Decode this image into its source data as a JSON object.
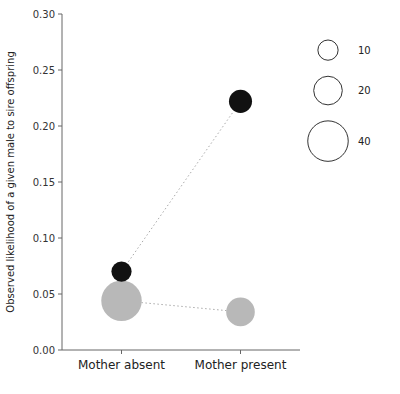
{
  "chart_data": {
    "type": "bubble",
    "y_label": "Observed likelihood of a given male to sire offspring",
    "categories": [
      "Mother absent",
      "Mother present"
    ],
    "series": [
      {
        "color": "#111111",
        "line_style": "dotted",
        "values": [
          0.07,
          0.222
        ],
        "sizes": [
          10,
          13
        ]
      },
      {
        "color": "#b8b8b8",
        "line_style": "dotted",
        "values": [
          0.044,
          0.034
        ],
        "sizes": [
          40,
          20
        ]
      }
    ],
    "size_legend": [
      10,
      20,
      40
    ],
    "ylim": [
      0.0,
      0.3
    ],
    "yticks": [
      {
        "value": 0.0,
        "label": "0.00"
      },
      {
        "value": 0.05,
        "label": "0.05"
      },
      {
        "value": 0.1,
        "label": "0.10"
      },
      {
        "value": 0.15,
        "label": "0.15"
      },
      {
        "value": 0.2,
        "label": "0.20"
      },
      {
        "value": 0.25,
        "label": "0.25"
      },
      {
        "value": 0.3,
        "label": "0.30"
      }
    ]
  }
}
